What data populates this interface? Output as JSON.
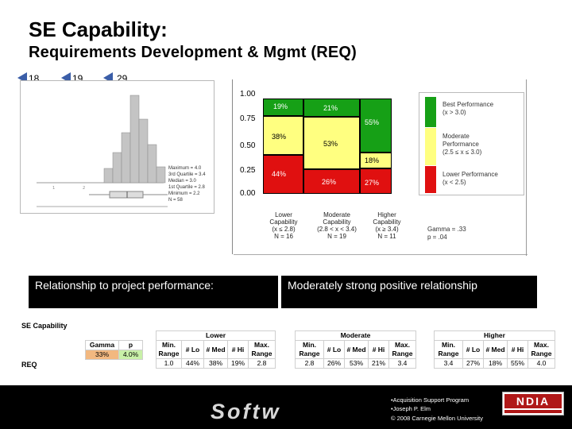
{
  "title": "SE Capability:",
  "subtitle": "Requirements Development & Mgmt (REQ)",
  "slide_tags": [
    "18",
    "19",
    "29"
  ],
  "boxplot_stats": {
    "lines": [
      "Maximum = 4.0",
      "3rd Quartile = 3.4",
      "Median = 3.0",
      "1st Quartile = 2.8",
      "Minimum = 2.2",
      "N = 58"
    ]
  },
  "mosaic": {
    "y_ticks": [
      "1.00",
      "0.75",
      "0.50",
      "0.25",
      "0.00"
    ],
    "columns": [
      {
        "segments": [
          {
            "label": "19%",
            "color": "#16a016"
          },
          {
            "label": "38%",
            "color": "#ffff80"
          },
          {
            "label": "44%",
            "color": "#e01010"
          }
        ]
      },
      {
        "segments": [
          {
            "label": "21%",
            "color": "#16a016"
          },
          {
            "label": "53%",
            "color": "#ffff80"
          },
          {
            "label": "26%",
            "color": "#e01010"
          }
        ]
      },
      {
        "segments": [
          {
            "label": "55%",
            "color": "#16a016"
          },
          {
            "label": "18%",
            "color": "#ffff80"
          },
          {
            "label": "27%",
            "color": "#e01010"
          }
        ]
      }
    ],
    "x_categories": [
      {
        "l1": "Lower",
        "l2": "Capability",
        "l3": "(x ≤ 2.8)",
        "l4": "N = 16"
      },
      {
        "l1": "Moderate",
        "l2": "Capability",
        "l3": "(2.8 < x < 3.4)",
        "l4": "N = 19"
      },
      {
        "l1": "Higher",
        "l2": "Capability",
        "l3": "(x ≥ 3.4)",
        "l4": "N = 11"
      }
    ],
    "gamma": "Gamma = .33",
    "p_value": "p = .04",
    "legend": [
      {
        "l1": "Best Performance",
        "l2": "(x > 3.0)",
        "l3": "",
        "color": "#16a016"
      },
      {
        "l1": "Moderate",
        "l2": "Performance",
        "l3": "(2.5 ≤ x ≤ 3.0)",
        "color": "#ffff80"
      },
      {
        "l1": "Lower Performance",
        "l2": "(x < 2.5)",
        "l3": "",
        "color": "#e01010"
      }
    ]
  },
  "relationship": {
    "label": "Relationship to project performance:",
    "value": "Moderately strong positive relationship"
  },
  "summary_table": {
    "section_label": "SE Capability",
    "row_label": "REQ",
    "gamma_header": "Gamma",
    "p_header": "p",
    "gamma_value": "33%",
    "p_value": "4.0%",
    "groups": [
      {
        "name": "Lower",
        "headers": [
          "Min. Range",
          "# Lo",
          "# Med",
          "# Hi",
          "Max. Range"
        ],
        "values": [
          "1.0",
          "44%",
          "38%",
          "19%",
          "2.8"
        ]
      },
      {
        "name": "Moderate",
        "headers": [
          "Min. Range",
          "# Lo",
          "# Med",
          "# Hi",
          "Max. Range"
        ],
        "values": [
          "2.8",
          "26%",
          "53%",
          "21%",
          "3.4"
        ]
      },
      {
        "name": "Higher",
        "headers": [
          "Min. Range",
          "# Lo",
          "# Med",
          "# Hi",
          "Max. Range"
        ],
        "values": [
          "3.4",
          "27%",
          "18%",
          "55%",
          "4.0"
        ]
      }
    ]
  },
  "footer": {
    "brand": "Softw",
    "line1": "•Acquisition Support Program",
    "line2": "•Joseph P. Elm",
    "copyright": "© 2008 Carnegie Mellon University",
    "logo_text": "NDIA"
  }
}
